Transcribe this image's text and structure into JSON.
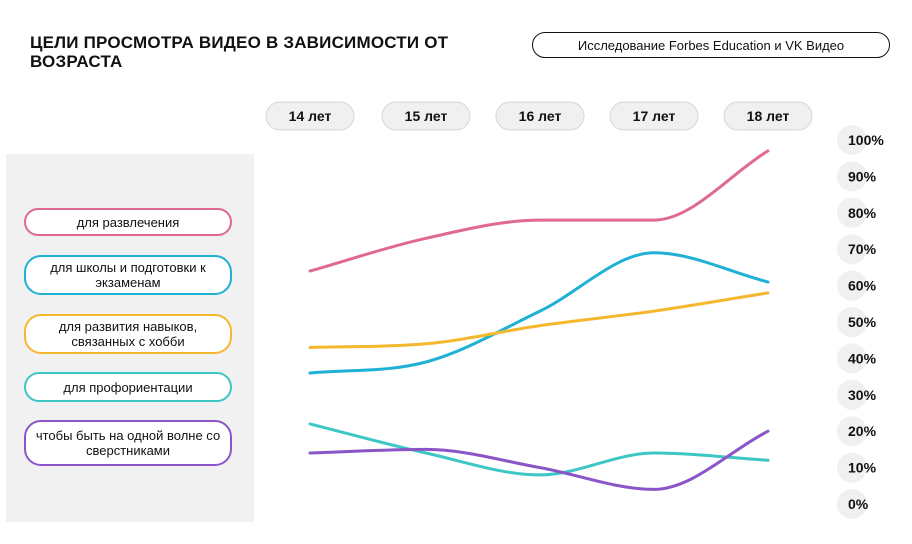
{
  "header": {
    "title": "ЦЕЛИ ПРОСМОТРА ВИДЕО В ЗАВИСИМОСТИ ОТ ВОЗРАСТА",
    "source": "Исследование Forbes Education и VK Видео"
  },
  "legend": [
    {
      "label": "для развлечения",
      "color": "#e0698f"
    },
    {
      "label": "для школы и подготовки к экзаменам",
      "color": "#1fb0d6"
    },
    {
      "label": "для развития навыков, связанных с хобби",
      "color": "#f4b82e"
    },
    {
      "label": "для профориентации",
      "color": "#3cc6c6"
    },
    {
      "label": "чтобы быть на одной волне со сверстниками",
      "color": "#8b55c7"
    }
  ],
  "chart_data": {
    "type": "line",
    "x": [
      "14 лет",
      "15 лет",
      "16 лет",
      "17 лет",
      "18 лет"
    ],
    "y_ticks": [
      "100%",
      "90%",
      "80%",
      "70%",
      "60%",
      "50%",
      "40%",
      "30%",
      "20%",
      "10%",
      "0%"
    ],
    "ylim": [
      0,
      100
    ],
    "series": [
      {
        "name": "для развлечения",
        "color": "#e0698f",
        "values": [
          64,
          73,
          78,
          78,
          97
        ]
      },
      {
        "name": "для школы и подготовки к экзаменам",
        "color": "#1fb0d6",
        "values": [
          36,
          39,
          53,
          69,
          61
        ]
      },
      {
        "name": "для развития навыков, связанных с хобби",
        "color": "#f4b82e",
        "values": [
          43,
          44,
          49,
          53,
          58
        ]
      },
      {
        "name": "для профориентации",
        "color": "#3cc6c6",
        "values": [
          22,
          14,
          8,
          14,
          12
        ]
      },
      {
        "name": "чтобы быть на одной волне со сверстниками",
        "color": "#8b55c7",
        "values": [
          14,
          15,
          10,
          4,
          20
        ]
      }
    ]
  }
}
